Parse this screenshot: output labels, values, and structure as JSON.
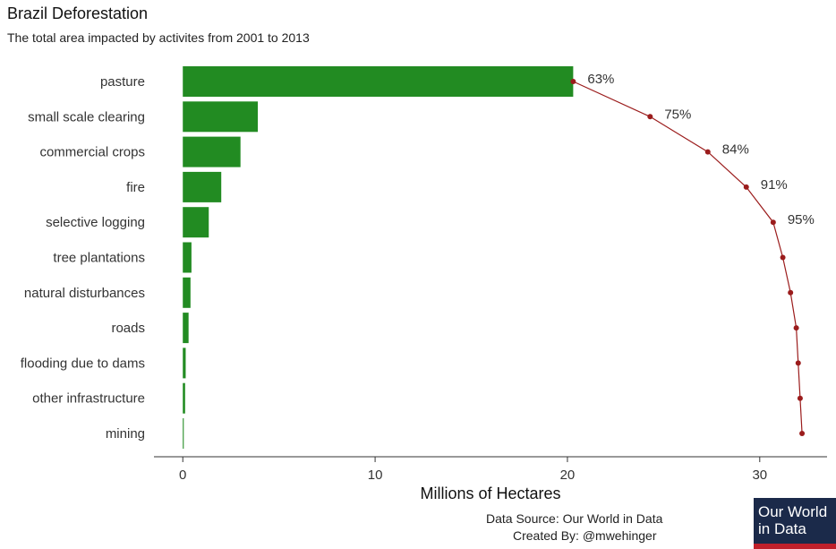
{
  "chart_data": {
    "type": "bar",
    "orientation": "horizontal",
    "title": "Brazil Deforestation",
    "subtitle": "The total area impacted by activites from 2001 to 2013",
    "xlabel": "Millions of Hectares",
    "xlim": [
      -1.5,
      33.5
    ],
    "xticks": [
      0,
      10,
      20,
      30
    ],
    "categories": [
      "pasture",
      "small scale clearing",
      "commercial crops",
      "fire",
      "selective logging",
      "tree plantations",
      "natural disturbances",
      "roads",
      "flooding due to dams",
      "other infrastructure",
      "mining"
    ],
    "values": [
      20.3,
      3.9,
      3.0,
      2.0,
      1.35,
      0.45,
      0.4,
      0.3,
      0.15,
      0.12,
      0.05
    ],
    "cumulative": [
      20.3,
      24.3,
      27.3,
      29.3,
      30.7,
      31.2,
      31.6,
      31.9,
      32.0,
      32.1,
      32.2
    ],
    "cumulative_labels": [
      "63%",
      "75%",
      "84%",
      "91%",
      "95%",
      "",
      "",
      "",
      "",
      "",
      ""
    ],
    "bar_color": "#228b22",
    "line_color": "#9b1c1c",
    "grid": false
  },
  "footer": {
    "source": "Data Source: Our World in Data",
    "creator": "Created By: @mwehinger"
  },
  "logo": {
    "line1": "Our World",
    "line2": "in Data",
    "bg": "#1b2a4a",
    "accent": "#c0202b"
  }
}
